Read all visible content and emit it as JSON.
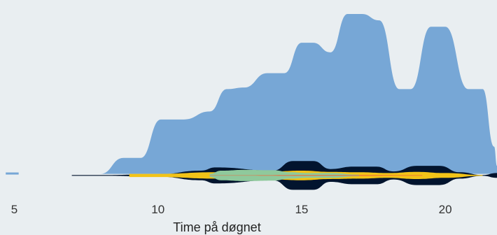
{
  "chart_data": {
    "type": "area",
    "xlabel": "Time på døgnet",
    "ylabel": "",
    "title": "",
    "xlim": [
      4.5,
      21.8
    ],
    "ylim": [
      -1.2,
      10
    ],
    "x_ticks": [
      5,
      10,
      15,
      20
    ],
    "grid": false,
    "legend": "none",
    "series": [
      {
        "color": "#77a7d6",
        "points": [
          [
            4.7,
            0
          ],
          [
            5.1,
            0
          ],
          [
            8,
            0
          ],
          [
            8.8,
            1
          ],
          [
            9.4,
            1
          ],
          [
            10.1,
            3.4
          ],
          [
            10.9,
            3.4
          ],
          [
            11.8,
            3.9
          ],
          [
            12.4,
            5.3
          ],
          [
            13,
            5.4
          ],
          [
            13.8,
            6.3
          ],
          [
            14.4,
            6.3
          ],
          [
            15,
            8.2
          ],
          [
            15.4,
            8.2
          ],
          [
            16,
            7.6
          ],
          [
            16.6,
            10
          ],
          [
            17.1,
            10
          ],
          [
            17.7,
            9.6
          ],
          [
            18.4,
            5.3
          ],
          [
            18.8,
            5.3
          ],
          [
            19.5,
            9.2
          ],
          [
            20,
            9.2
          ],
          [
            20.8,
            5.3
          ],
          [
            21.3,
            5.3
          ],
          [
            21.7,
            1.7
          ],
          [
            21.8,
            0.5
          ]
        ]
      },
      {
        "color": "#02142e",
        "points": [
          [
            7,
            0.05
          ],
          [
            8,
            0.05
          ],
          [
            10,
            0.15
          ],
          [
            11.5,
            0.6
          ],
          [
            12,
            1
          ],
          [
            14,
            0.6
          ],
          [
            14.7,
            1.8
          ],
          [
            15.4,
            1.8
          ],
          [
            16,
            0.8
          ],
          [
            16.8,
            1.1
          ],
          [
            17.6,
            1.1
          ],
          [
            18.2,
            0.5
          ],
          [
            19,
            1.2
          ],
          [
            19.8,
            1.2
          ],
          [
            20.5,
            0.4
          ],
          [
            21.3,
            0.05
          ],
          [
            21.8,
            0.3
          ]
        ]
      },
      {
        "color": "#f2c318",
        "points": [
          [
            9,
            0.2
          ],
          [
            10,
            0.2
          ],
          [
            12,
            0.4
          ],
          [
            13,
            0.45
          ],
          [
            14,
            0.5
          ],
          [
            15,
            0.6
          ],
          [
            16,
            0.45
          ],
          [
            17,
            0.4
          ],
          [
            18,
            0.3
          ],
          [
            19,
            0.45
          ],
          [
            20,
            0.3
          ],
          [
            21.3,
            0.05
          ]
        ]
      },
      {
        "color": "#8fc99c",
        "points": [
          [
            11.8,
            0.2
          ],
          [
            12.2,
            0.6
          ],
          [
            13,
            0.7
          ],
          [
            14,
            0.65
          ],
          [
            14.6,
            0.4
          ],
          [
            15.2,
            0.3
          ],
          [
            16,
            0.3
          ],
          [
            17,
            0.1
          ]
        ]
      },
      {
        "color": "#ef6a3d",
        "points": [
          [
            11.8,
            0.02
          ],
          [
            12.4,
            0.02
          ],
          [
            15.8,
            0.05
          ],
          [
            16.4,
            0.05
          ],
          [
            18.7,
            0.03
          ],
          [
            19.2,
            0.03
          ]
        ]
      }
    ]
  }
}
